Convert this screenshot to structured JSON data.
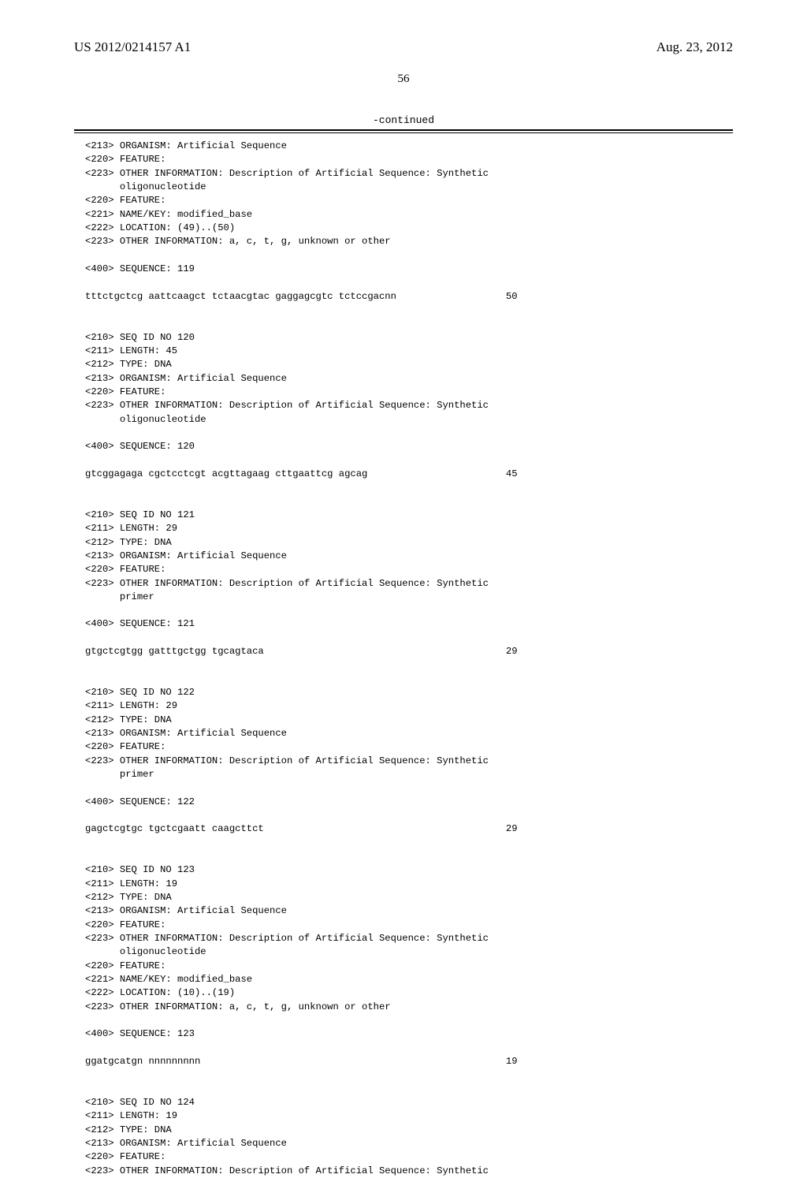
{
  "header": {
    "publication_number": "US 2012/0214157 A1",
    "publication_date": "Aug. 23, 2012"
  },
  "page_number": "56",
  "continued_label": "-continued",
  "body": "<213> ORGANISM: Artificial Sequence\n<220> FEATURE:\n<223> OTHER INFORMATION: Description of Artificial Sequence: Synthetic\n      oligonucleotide\n<220> FEATURE:\n<221> NAME/KEY: modified_base\n<222> LOCATION: (49)..(50)\n<223> OTHER INFORMATION: a, c, t, g, unknown or other\n\n<400> SEQUENCE: 119\n\ntttctgctcg aattcaagct tctaacgtac gaggagcgtc tctccgacnn                   50\n\n\n<210> SEQ ID NO 120\n<211> LENGTH: 45\n<212> TYPE: DNA\n<213> ORGANISM: Artificial Sequence\n<220> FEATURE:\n<223> OTHER INFORMATION: Description of Artificial Sequence: Synthetic\n      oligonucleotide\n\n<400> SEQUENCE: 120\n\ngtcggagaga cgctcctcgt acgttagaag cttgaattcg agcag                        45\n\n\n<210> SEQ ID NO 121\n<211> LENGTH: 29\n<212> TYPE: DNA\n<213> ORGANISM: Artificial Sequence\n<220> FEATURE:\n<223> OTHER INFORMATION: Description of Artificial Sequence: Synthetic\n      primer\n\n<400> SEQUENCE: 121\n\ngtgctcgtgg gatttgctgg tgcagtaca                                          29\n\n\n<210> SEQ ID NO 122\n<211> LENGTH: 29\n<212> TYPE: DNA\n<213> ORGANISM: Artificial Sequence\n<220> FEATURE:\n<223> OTHER INFORMATION: Description of Artificial Sequence: Synthetic\n      primer\n\n<400> SEQUENCE: 122\n\ngagctcgtgc tgctcgaatt caagcttct                                          29\n\n\n<210> SEQ ID NO 123\n<211> LENGTH: 19\n<212> TYPE: DNA\n<213> ORGANISM: Artificial Sequence\n<220> FEATURE:\n<223> OTHER INFORMATION: Description of Artificial Sequence: Synthetic\n      oligonucleotide\n<220> FEATURE:\n<221> NAME/KEY: modified_base\n<222> LOCATION: (10)..(19)\n<223> OTHER INFORMATION: a, c, t, g, unknown or other\n\n<400> SEQUENCE: 123\n\nggatgcatgn nnnnnnnnn                                                     19\n\n\n<210> SEQ ID NO 124\n<211> LENGTH: 19\n<212> TYPE: DNA\n<213> ORGANISM: Artificial Sequence\n<220> FEATURE:\n<223> OTHER INFORMATION: Description of Artificial Sequence: Synthetic"
}
